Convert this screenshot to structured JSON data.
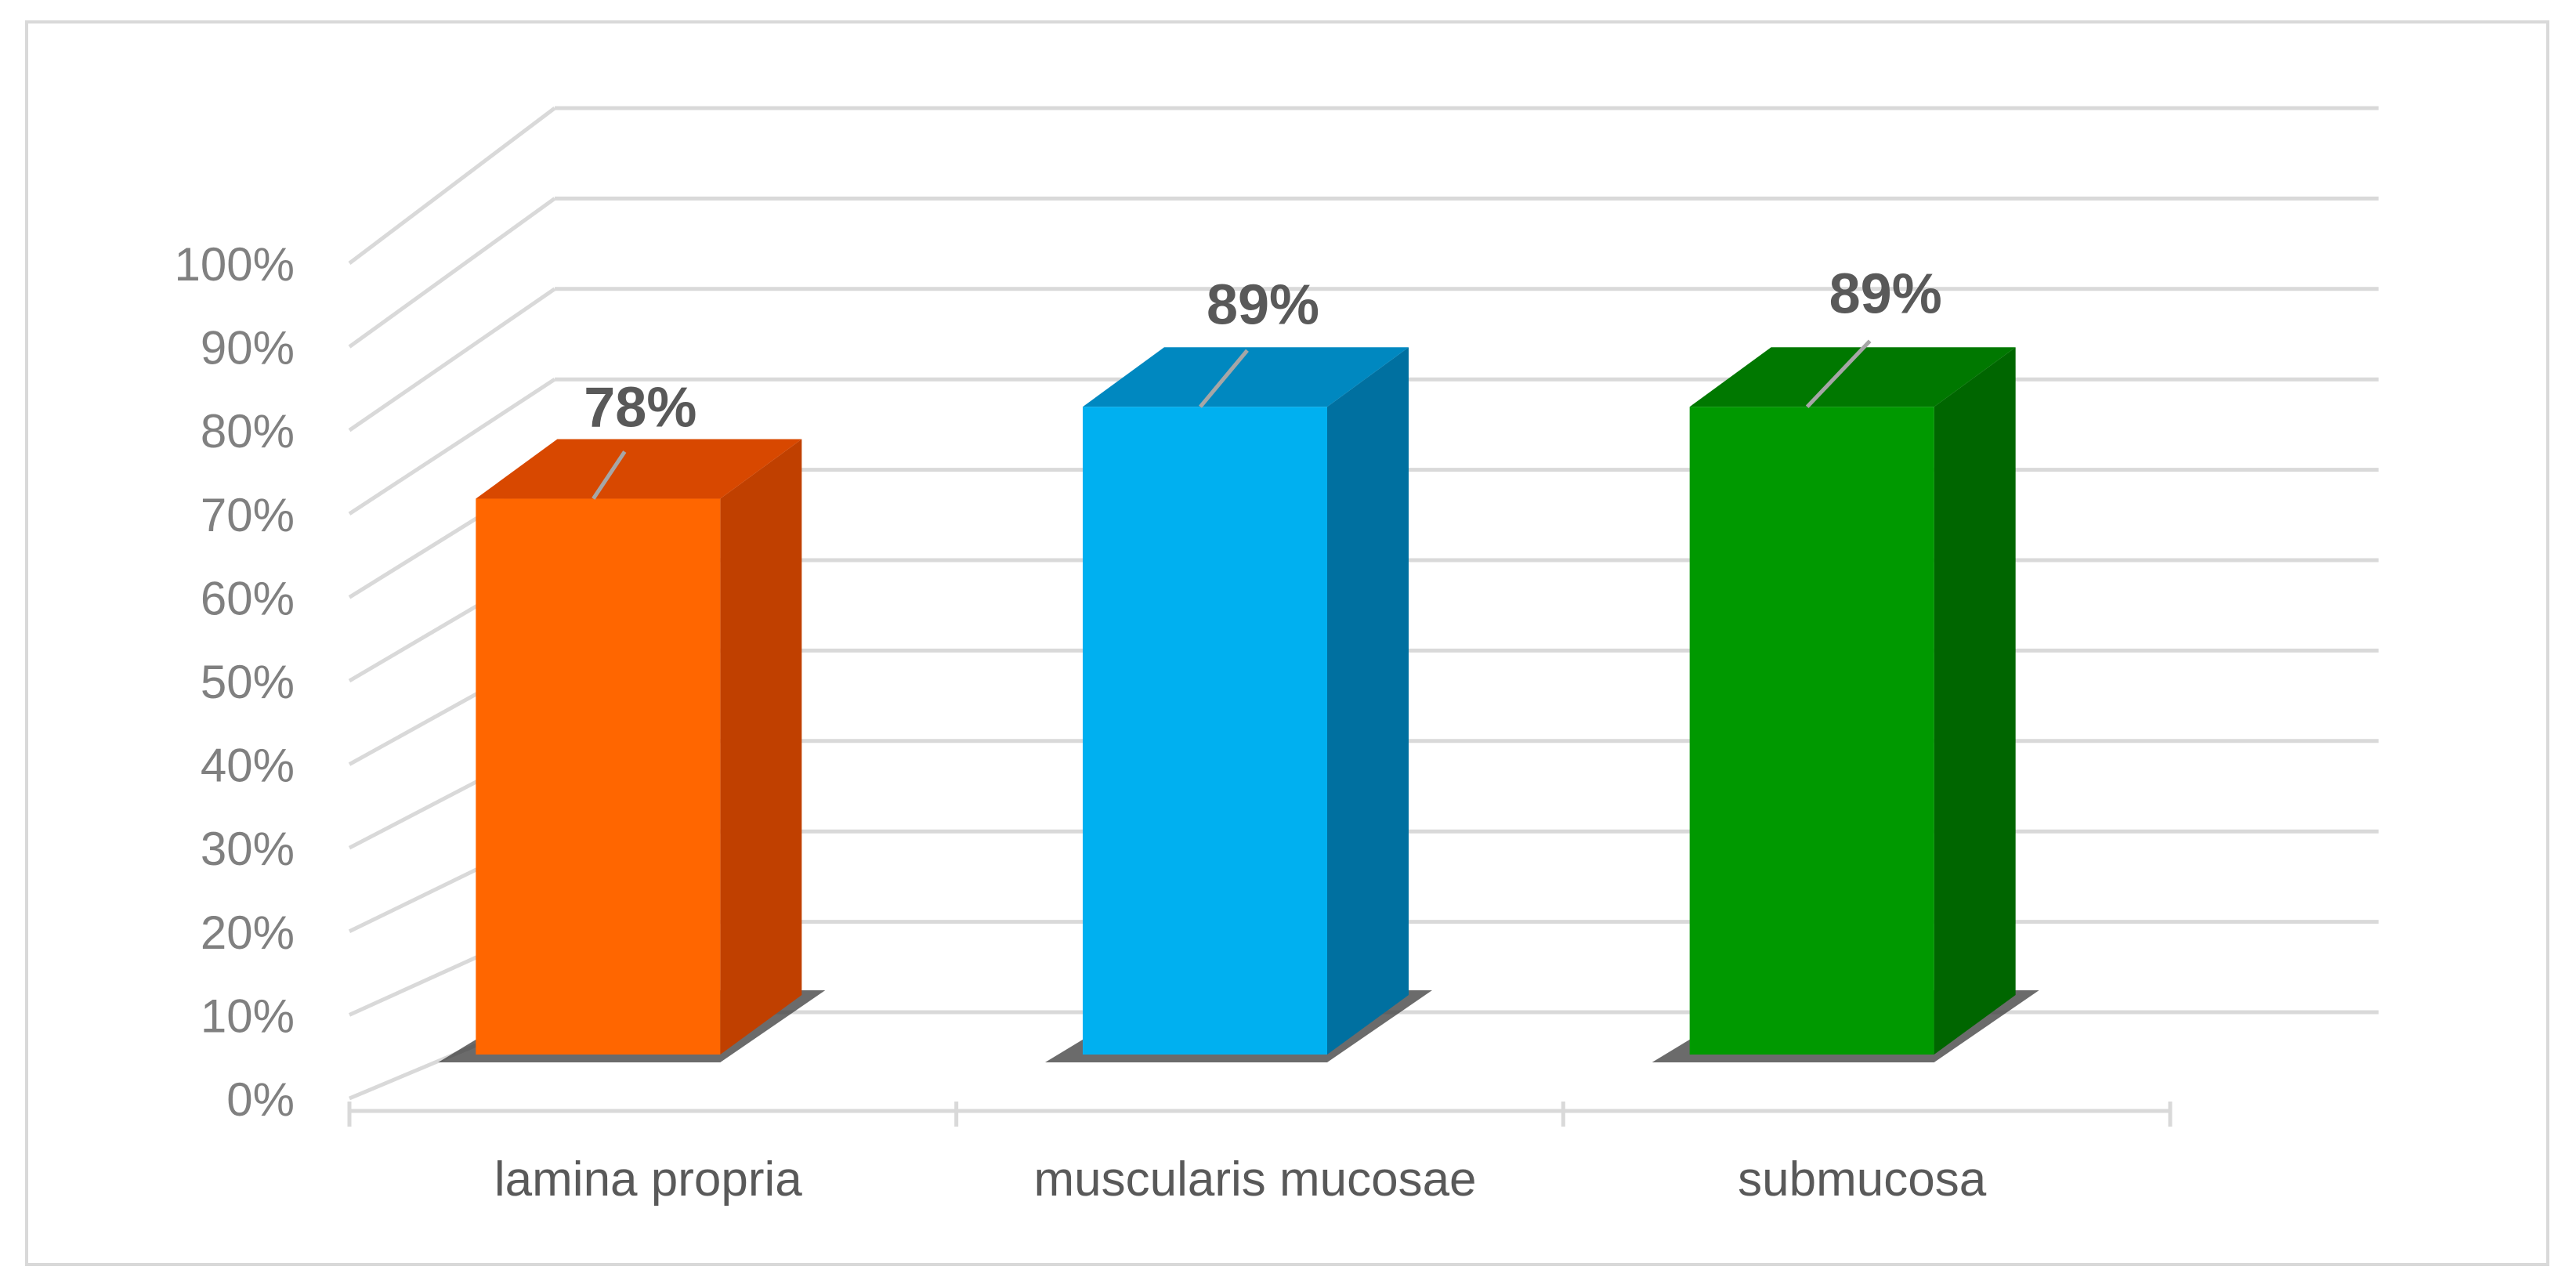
{
  "chart_data": {
    "type": "bar",
    "style": "3d-column",
    "categories": [
      "lamina propria",
      "muscularis mucosae",
      "submucosa"
    ],
    "values": [
      78,
      89,
      89
    ],
    "data_labels": [
      "78%",
      "89%",
      "89%"
    ],
    "colors": [
      "#ff6600",
      "#00b0f0",
      "#009900"
    ],
    "side_colors": [
      "#c04000",
      "#0070a0",
      "#006600"
    ],
    "top_colors": [
      "#d84800",
      "#0088c0",
      "#007800"
    ],
    "ylim": [
      0,
      100
    ],
    "y_ticks": [
      "0%",
      "10%",
      "20%",
      "30%",
      "40%",
      "50%",
      "60%",
      "70%",
      "80%",
      "90%",
      "100%"
    ],
    "grid": true,
    "legend": "none",
    "title": "",
    "xlabel": "",
    "ylabel": ""
  }
}
